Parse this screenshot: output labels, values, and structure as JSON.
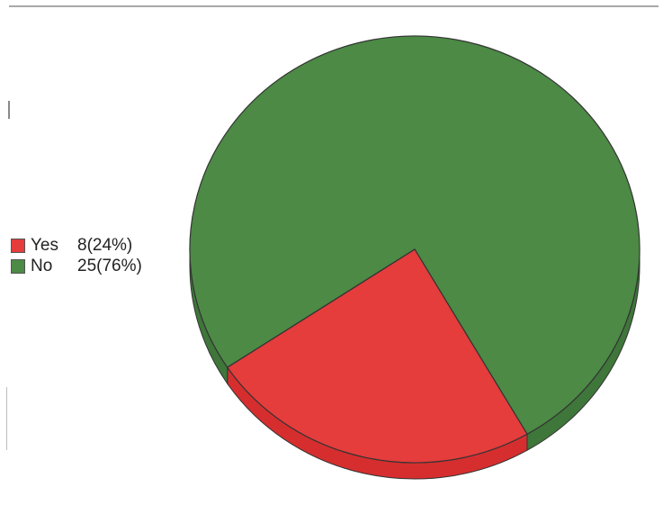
{
  "chart_data": {
    "type": "pie",
    "title": "",
    "slices": [
      {
        "label": "Yes",
        "count": 8,
        "percent": 24,
        "display": "8(24%)",
        "color": "#e53c3c",
        "side_color": "#d62e2e"
      },
      {
        "label": "No",
        "count": 25,
        "percent": 76,
        "display": "25(76%)",
        "color": "#4c8a45",
        "side_color": "#3f763a"
      }
    ],
    "legend_position": "left",
    "style": "3d-tilted"
  }
}
